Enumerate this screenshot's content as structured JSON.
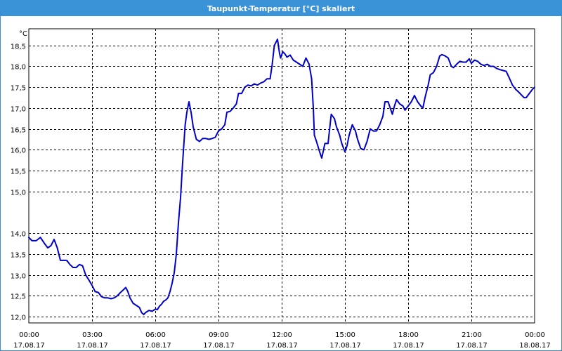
{
  "window": {
    "title": "Taupunkt-Temperatur [°C] skaliert"
  },
  "chart_data": {
    "type": "line",
    "title": "Taupunkt-Temperatur [°C] skaliert",
    "ylabel": "°C",
    "xlabel": "",
    "ylim": [
      11.85,
      18.9
    ],
    "xlim": [
      0,
      24
    ],
    "grid": true,
    "colors": {
      "line": "#0000cc",
      "grid": "#000000"
    },
    "yticks": [
      {
        "value": 18.5,
        "label": "18,5"
      },
      {
        "value": 18.0,
        "label": "18,0"
      },
      {
        "value": 17.5,
        "label": "17,5"
      },
      {
        "value": 17.0,
        "label": "17,0"
      },
      {
        "value": 16.5,
        "label": "16,5"
      },
      {
        "value": 16.0,
        "label": "16,0"
      },
      {
        "value": 15.5,
        "label": "15,5"
      },
      {
        "value": 15.0,
        "label": "15,0"
      },
      {
        "value": 14.0,
        "label": "14,0"
      },
      {
        "value": 13.5,
        "label": "13,5"
      },
      {
        "value": 13.0,
        "label": "13,0"
      },
      {
        "value": 12.5,
        "label": "12,5"
      },
      {
        "value": 12.0,
        "label": "12,0"
      }
    ],
    "xticks": [
      {
        "value": 0,
        "time": "00:00",
        "date": "17.08.17"
      },
      {
        "value": 3,
        "time": "03:00",
        "date": "17.08.17"
      },
      {
        "value": 6,
        "time": "06:00",
        "date": "17.08.17"
      },
      {
        "value": 9,
        "time": "09:00",
        "date": "17.08.17"
      },
      {
        "value": 12,
        "time": "12:00",
        "date": "17.08.17"
      },
      {
        "value": 15,
        "time": "15:00",
        "date": "17.08.17"
      },
      {
        "value": 18,
        "time": "18:00",
        "date": "17.08.17"
      },
      {
        "value": 21,
        "time": "21:00",
        "date": "17.08.17"
      },
      {
        "value": 24,
        "time": "00:00",
        "date": "18.08.17"
      }
    ],
    "series": [
      {
        "points": [
          [
            0.0,
            13.9
          ],
          [
            0.15,
            13.82
          ],
          [
            0.35,
            13.82
          ],
          [
            0.55,
            13.9
          ],
          [
            0.75,
            13.75
          ],
          [
            0.9,
            13.65
          ],
          [
            1.05,
            13.7
          ],
          [
            1.2,
            13.85
          ],
          [
            1.35,
            13.65
          ],
          [
            1.5,
            13.35
          ],
          [
            1.65,
            13.35
          ],
          [
            1.8,
            13.35
          ],
          [
            1.95,
            13.25
          ],
          [
            2.1,
            13.18
          ],
          [
            2.25,
            13.18
          ],
          [
            2.4,
            13.25
          ],
          [
            2.55,
            13.22
          ],
          [
            2.7,
            13.0
          ],
          [
            2.85,
            12.88
          ],
          [
            3.0,
            12.75
          ],
          [
            3.15,
            12.6
          ],
          [
            3.3,
            12.58
          ],
          [
            3.45,
            12.48
          ],
          [
            3.6,
            12.45
          ],
          [
            3.75,
            12.45
          ],
          [
            3.9,
            12.43
          ],
          [
            4.05,
            12.45
          ],
          [
            4.2,
            12.5
          ],
          [
            4.35,
            12.58
          ],
          [
            4.5,
            12.65
          ],
          [
            4.6,
            12.7
          ],
          [
            4.7,
            12.6
          ],
          [
            4.8,
            12.45
          ],
          [
            4.95,
            12.32
          ],
          [
            5.1,
            12.27
          ],
          [
            5.25,
            12.22
          ],
          [
            5.35,
            12.1
          ],
          [
            5.45,
            12.05
          ],
          [
            5.55,
            12.1
          ],
          [
            5.7,
            12.15
          ],
          [
            5.85,
            12.13
          ],
          [
            6.0,
            12.18
          ],
          [
            6.1,
            12.17
          ],
          [
            6.2,
            12.25
          ],
          [
            6.3,
            12.3
          ],
          [
            6.4,
            12.37
          ],
          [
            6.5,
            12.4
          ],
          [
            6.6,
            12.45
          ],
          [
            6.7,
            12.6
          ],
          [
            6.8,
            12.8
          ],
          [
            6.9,
            13.05
          ],
          [
            7.0,
            13.5
          ],
          [
            7.1,
            14.25
          ],
          [
            7.2,
            14.85
          ],
          [
            7.3,
            15.7
          ],
          [
            7.42,
            16.6
          ],
          [
            7.5,
            16.9
          ],
          [
            7.6,
            17.15
          ],
          [
            7.7,
            16.9
          ],
          [
            7.8,
            16.55
          ],
          [
            7.95,
            16.25
          ],
          [
            8.1,
            16.2
          ],
          [
            8.25,
            16.27
          ],
          [
            8.4,
            16.27
          ],
          [
            8.55,
            16.25
          ],
          [
            8.7,
            16.27
          ],
          [
            8.85,
            16.3
          ],
          [
            9.0,
            16.45
          ],
          [
            9.15,
            16.5
          ],
          [
            9.3,
            16.6
          ],
          [
            9.4,
            16.9
          ],
          [
            9.55,
            16.92
          ],
          [
            9.7,
            17.0
          ],
          [
            9.85,
            17.1
          ],
          [
            9.95,
            17.35
          ],
          [
            10.1,
            17.35
          ],
          [
            10.25,
            17.5
          ],
          [
            10.4,
            17.55
          ],
          [
            10.55,
            17.53
          ],
          [
            10.7,
            17.58
          ],
          [
            10.85,
            17.55
          ],
          [
            11.0,
            17.6
          ],
          [
            11.15,
            17.63
          ],
          [
            11.3,
            17.7
          ],
          [
            11.45,
            17.7
          ],
          [
            11.55,
            18.05
          ],
          [
            11.65,
            18.5
          ],
          [
            11.8,
            18.65
          ],
          [
            11.9,
            18.3
          ],
          [
            11.95,
            18.2
          ],
          [
            12.05,
            18.35
          ],
          [
            12.15,
            18.3
          ],
          [
            12.25,
            18.22
          ],
          [
            12.4,
            18.27
          ],
          [
            12.55,
            18.15
          ],
          [
            12.7,
            18.1
          ],
          [
            12.85,
            18.05
          ],
          [
            13.0,
            18.0
          ],
          [
            13.15,
            18.2
          ],
          [
            13.3,
            18.05
          ],
          [
            13.42,
            17.7
          ],
          [
            13.5,
            17.0
          ],
          [
            13.55,
            16.35
          ],
          [
            13.65,
            16.2
          ],
          [
            13.8,
            15.95
          ],
          [
            13.9,
            15.8
          ],
          [
            14.05,
            16.15
          ],
          [
            14.2,
            16.15
          ],
          [
            14.35,
            16.85
          ],
          [
            14.5,
            16.75
          ],
          [
            14.6,
            16.55
          ],
          [
            14.75,
            16.35
          ],
          [
            14.85,
            16.15
          ],
          [
            15.0,
            15.95
          ],
          [
            15.1,
            16.1
          ],
          [
            15.2,
            16.35
          ],
          [
            15.35,
            16.6
          ],
          [
            15.5,
            16.45
          ],
          [
            15.6,
            16.25
          ],
          [
            15.75,
            16.03
          ],
          [
            15.9,
            16.0
          ],
          [
            16.05,
            16.2
          ],
          [
            16.2,
            16.5
          ],
          [
            16.35,
            16.45
          ],
          [
            16.5,
            16.45
          ],
          [
            16.65,
            16.6
          ],
          [
            16.8,
            16.8
          ],
          [
            16.9,
            17.15
          ],
          [
            17.05,
            17.15
          ],
          [
            17.15,
            17.0
          ],
          [
            17.25,
            16.85
          ],
          [
            17.35,
            17.05
          ],
          [
            17.45,
            17.2
          ],
          [
            17.6,
            17.1
          ],
          [
            17.75,
            17.05
          ],
          [
            17.85,
            16.95
          ],
          [
            18.0,
            17.05
          ],
          [
            18.15,
            17.15
          ],
          [
            18.3,
            17.3
          ],
          [
            18.45,
            17.15
          ],
          [
            18.6,
            17.05
          ],
          [
            18.7,
            17.0
          ],
          [
            18.8,
            17.25
          ],
          [
            18.95,
            17.55
          ],
          [
            19.05,
            17.8
          ],
          [
            19.2,
            17.85
          ],
          [
            19.35,
            18.0
          ],
          [
            19.5,
            18.25
          ],
          [
            19.6,
            18.28
          ],
          [
            19.75,
            18.25
          ],
          [
            19.9,
            18.2
          ],
          [
            20.05,
            18.0
          ],
          [
            20.15,
            17.97
          ],
          [
            20.3,
            18.05
          ],
          [
            20.45,
            18.12
          ],
          [
            20.6,
            18.1
          ],
          [
            20.75,
            18.1
          ],
          [
            20.9,
            18.18
          ],
          [
            21.0,
            18.07
          ],
          [
            21.15,
            18.15
          ],
          [
            21.3,
            18.12
          ],
          [
            21.45,
            18.05
          ],
          [
            21.6,
            18.02
          ],
          [
            21.75,
            18.05
          ],
          [
            21.9,
            18.0
          ],
          [
            22.05,
            18.0
          ],
          [
            22.2,
            17.95
          ],
          [
            22.35,
            17.92
          ],
          [
            22.5,
            17.9
          ],
          [
            22.65,
            17.88
          ],
          [
            22.8,
            17.72
          ],
          [
            22.95,
            17.55
          ],
          [
            23.1,
            17.45
          ],
          [
            23.25,
            17.38
          ],
          [
            23.4,
            17.3
          ],
          [
            23.5,
            17.25
          ],
          [
            23.6,
            17.25
          ],
          [
            23.75,
            17.35
          ],
          [
            23.9,
            17.45
          ],
          [
            24.0,
            17.5
          ]
        ]
      }
    ]
  }
}
